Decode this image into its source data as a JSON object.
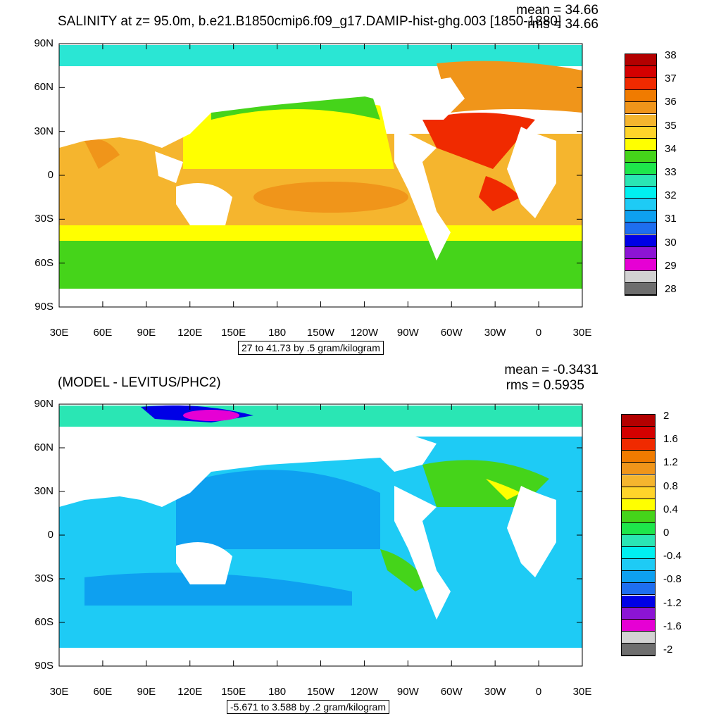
{
  "panel1": {
    "title": "SALINITY at z=  95.0m, b.e21.B1850cmip6.f09_g17.DAMIP-hist-ghg.003 [1850-1880]",
    "mean_text": "mean = 34.66",
    "rms_text": "rms = 34.66",
    "range_note": "27 to 41.73 by .5 gram/kilogram",
    "colorbar_labels": [
      "38",
      "37",
      "36",
      "35",
      "34",
      "33",
      "32",
      "31",
      "30",
      "29",
      "28"
    ],
    "colors": [
      "#b30000",
      "#d40000",
      "#f02a00",
      "#f07b00",
      "#f0951a",
      "#f5b52e",
      "#ffd42a",
      "#ffff00",
      "#45d41a",
      "#1ee64b",
      "#2ae6b4",
      "#00f0f0",
      "#1ecbf5",
      "#0ea0f0",
      "#1e6ef0",
      "#0000e6",
      "#8c14d4",
      "#e600d4",
      "#d2d2d2",
      "#6e6e6e"
    ]
  },
  "panel2": {
    "title": "(MODEL - LEVITUS/PHC2)",
    "mean_text": "mean = -0.3431",
    "rms_text": "rms = 0.5935",
    "range_note": "-5.671 to 3.588 by .2 gram/kilogram",
    "colorbar_labels": [
      "2",
      "1.6",
      "1.2",
      "0.8",
      "0.4",
      "0",
      "-0.4",
      "-0.8",
      "-1.2",
      "-1.6",
      "-2"
    ],
    "colors": [
      "#b30000",
      "#d40000",
      "#f02a00",
      "#f07b00",
      "#f0951a",
      "#f5b52e",
      "#ffd42a",
      "#ffff00",
      "#45d41a",
      "#1ee64b",
      "#2ae6b4",
      "#00f0f0",
      "#1ecbf5",
      "#0ea0f0",
      "#1e6ef0",
      "#0000e6",
      "#8c14d4",
      "#e600d4",
      "#d2d2d2",
      "#6e6e6e"
    ]
  },
  "axes": {
    "lat_labels": [
      "90N",
      "60N",
      "30N",
      "0",
      "30S",
      "60S",
      "90S"
    ],
    "lon_labels": [
      "30E",
      "60E",
      "90E",
      "120E",
      "150E",
      "180",
      "150W",
      "120W",
      "90W",
      "60W",
      "30W",
      "0",
      "30E"
    ]
  }
}
